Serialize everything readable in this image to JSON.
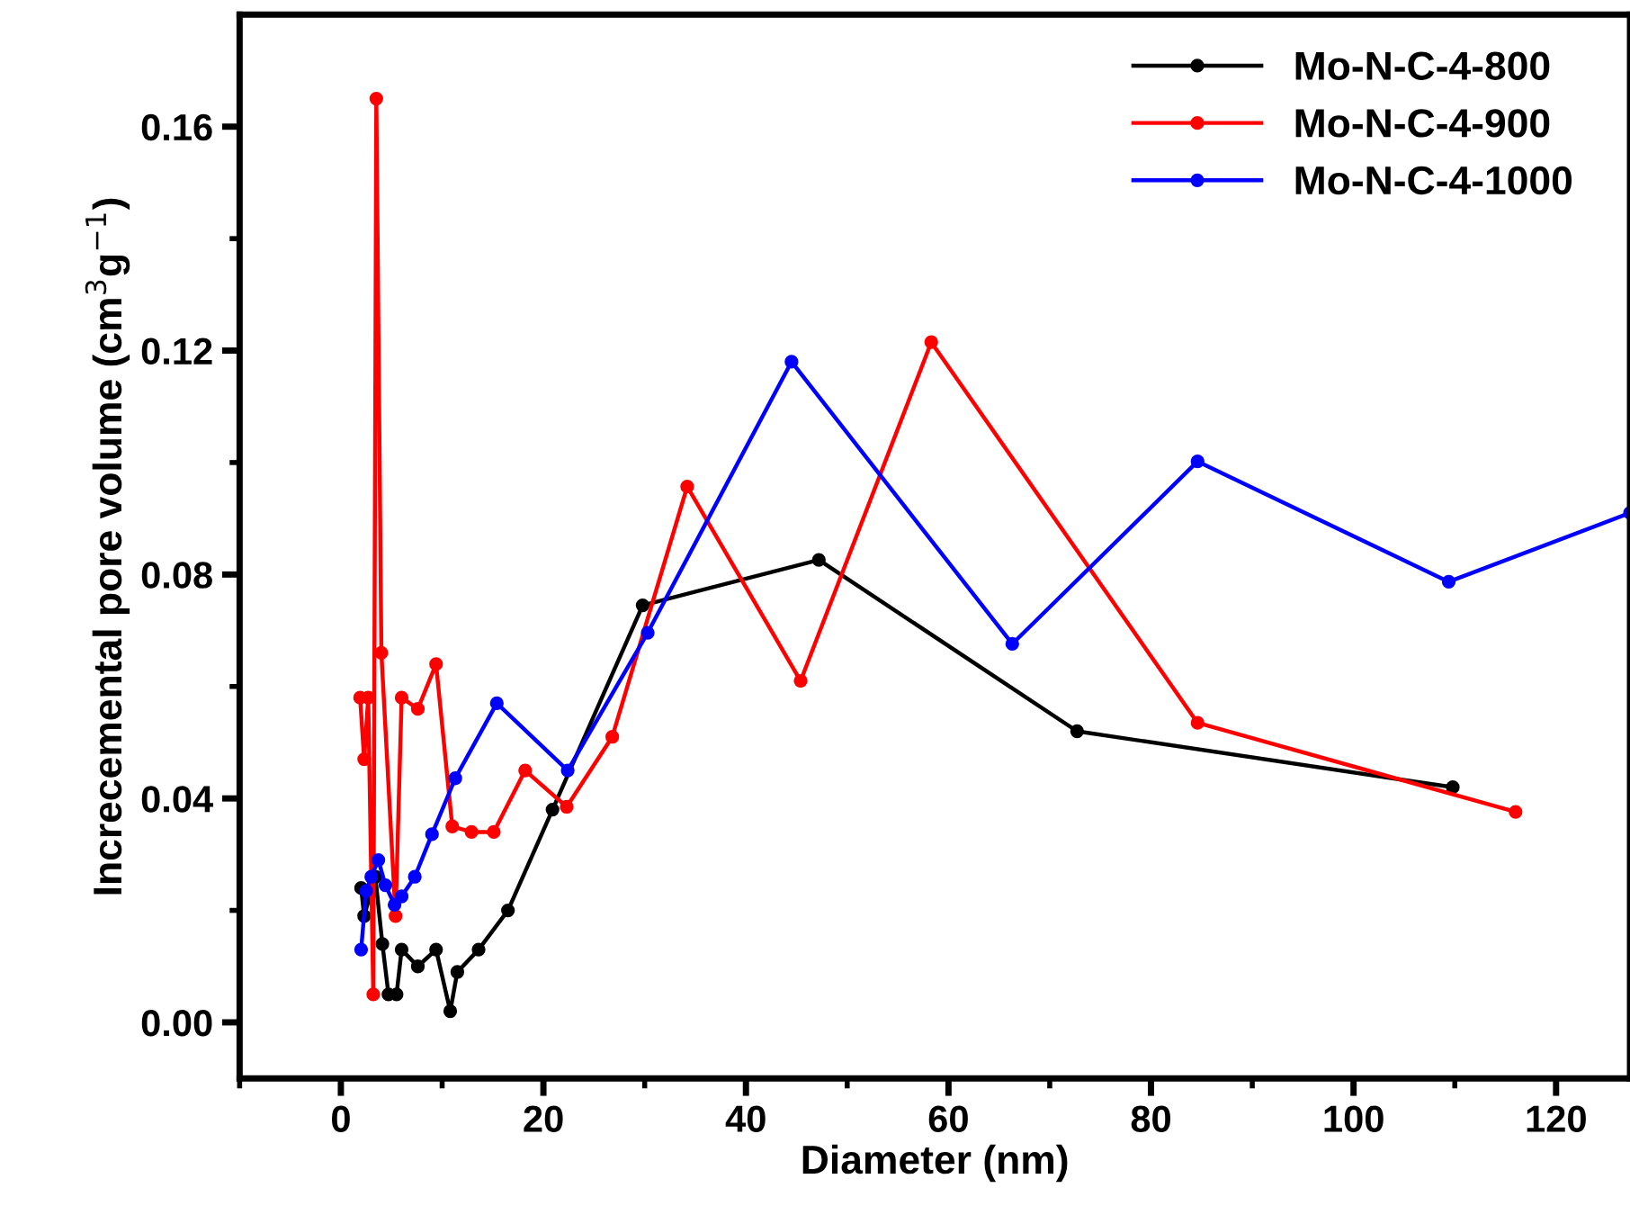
{
  "chart_data": {
    "type": "line",
    "xlabel": "Diameter (nm)",
    "ylabel": "Increcemental pore volume (cm$^{3}$g$^{−1}$)",
    "xlim": [
      -10,
      127.3
    ],
    "xticks": [
      0,
      20,
      40,
      60,
      80,
      100,
      120
    ],
    "ylim": [
      -0.01,
      0.18
    ],
    "yticks": [
      {
        "value": 0,
        "label": "0.00"
      },
      {
        "value": 0.04,
        "label": "0.04"
      },
      {
        "value": 0.08,
        "label": "0.08"
      },
      {
        "value": 0.12,
        "label": "0.12"
      },
      {
        "value": 0.16,
        "label": "0.16"
      }
    ],
    "grid": false,
    "legend": "top right",
    "marker": "circle",
    "line_style": "solid",
    "series": [
      {
        "name": "Mo-N-C-4-800",
        "color": "#000000",
        "x": [
          2.0,
          2.3,
          3.4,
          4.1,
          4.7,
          5.5,
          6.0,
          7.6,
          9.4,
          10.8,
          11.5,
          13.6,
          16.5,
          20.9,
          29.8,
          47.2,
          72.7,
          109.8
        ],
        "values": [
          0.024,
          0.019,
          0.026,
          0.014,
          0.005,
          0.005,
          0.013,
          0.01,
          0.013,
          0.002,
          0.009,
          0.013,
          0.02,
          0.038,
          0.0745,
          0.0826,
          0.052,
          0.042
        ]
      },
      {
        "name": "Mo-N-C-4-900",
        "color": "#ff0000",
        "x": [
          1.9,
          2.3,
          2.7,
          3.2,
          3.5,
          4.0,
          5.4,
          6.0,
          7.6,
          9.4,
          11.0,
          12.9,
          15.1,
          18.2,
          22.3,
          26.8,
          34.2,
          45.4,
          58.3,
          84.6,
          116.0
        ],
        "values": [
          0.058,
          0.047,
          0.058,
          0.005,
          0.165,
          0.066,
          0.019,
          0.058,
          0.056,
          0.064,
          0.035,
          0.034,
          0.034,
          0.045,
          0.0385,
          0.051,
          0.0957,
          0.061,
          0.1215,
          0.0535,
          0.0376
        ]
      },
      {
        "name": "Mo-N-C-4-1000",
        "color": "#0000ff",
        "x": [
          2.0,
          2.5,
          3.0,
          3.7,
          4.4,
          5.3,
          6.0,
          7.3,
          9.0,
          11.3,
          15.4,
          22.4,
          30.3,
          44.5,
          66.3,
          84.6,
          109.4,
          127.3
        ],
        "values": [
          0.013,
          0.0235,
          0.026,
          0.029,
          0.0245,
          0.021,
          0.0225,
          0.026,
          0.0336,
          0.0436,
          0.057,
          0.045,
          0.0696,
          0.118,
          0.0676,
          0.1002,
          0.0787,
          0.091
        ]
      }
    ]
  }
}
